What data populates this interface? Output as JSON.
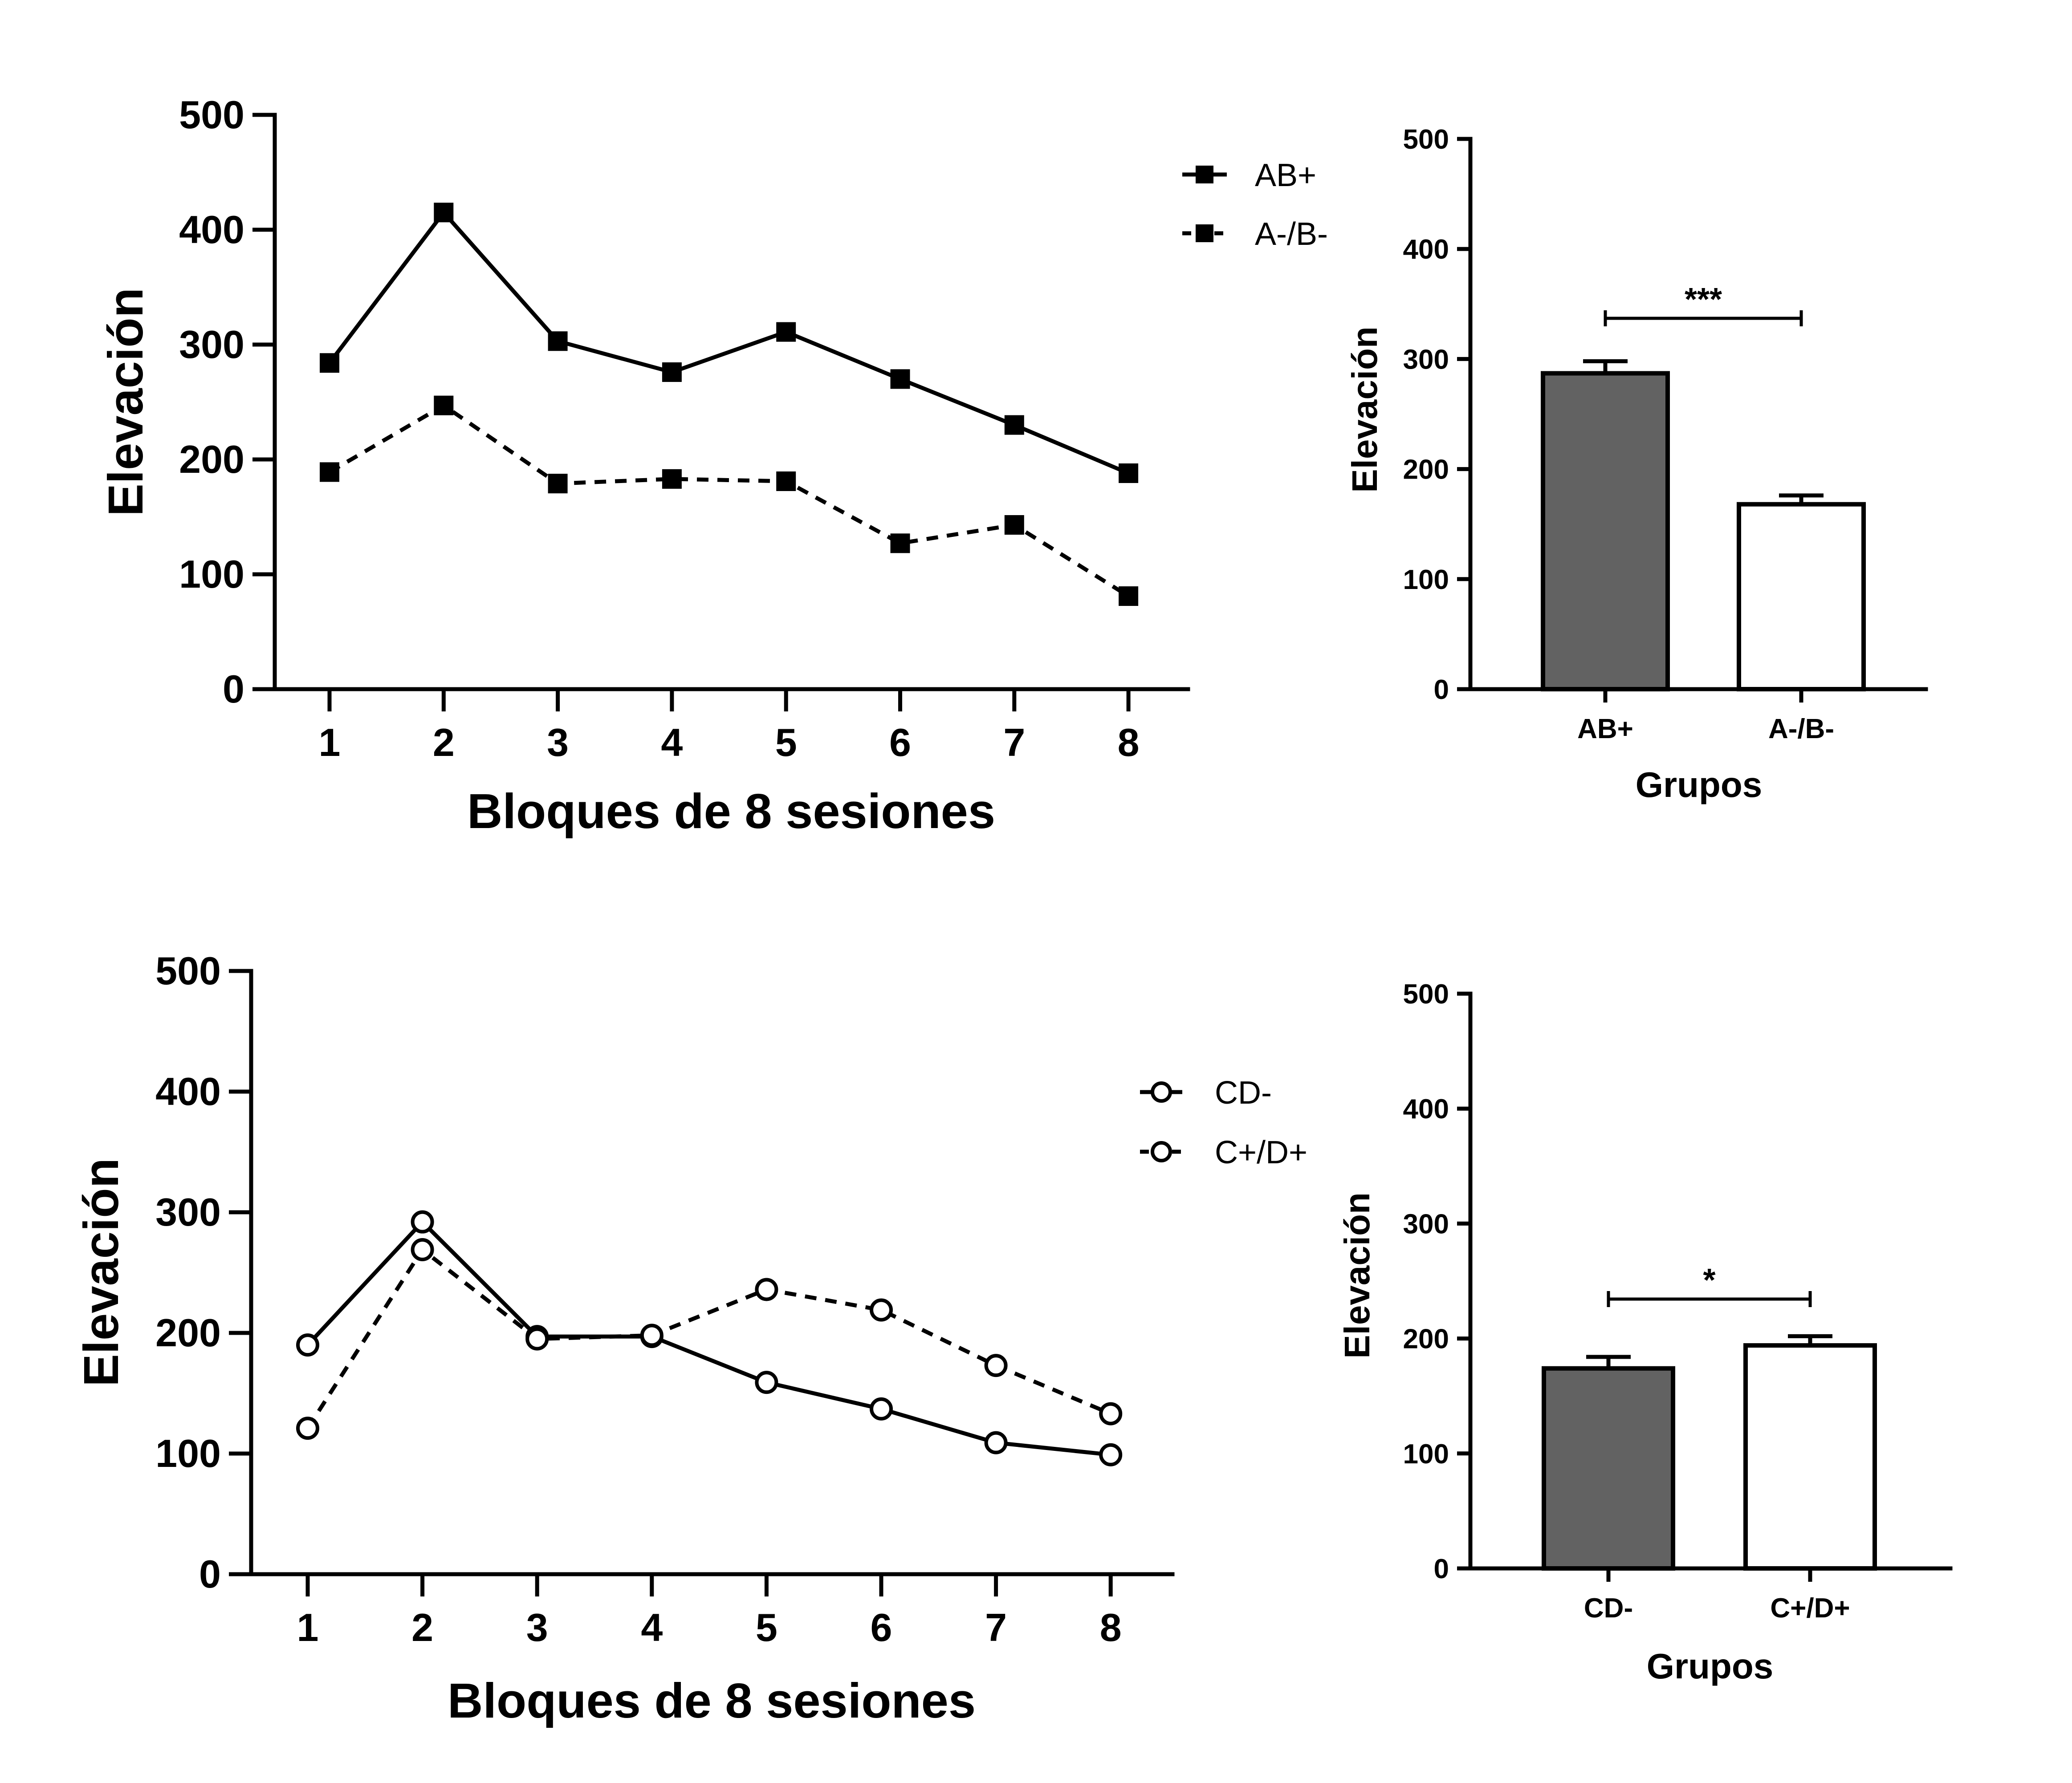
{
  "chart_data": [
    {
      "id": "line-top",
      "type": "line",
      "xlabel": "Bloques de 8 sesiones",
      "ylabel": "Elevación",
      "ylim": [
        0,
        500
      ],
      "yticks": [
        0,
        100,
        200,
        300,
        400,
        500
      ],
      "x": [
        1,
        2,
        3,
        4,
        5,
        6,
        7,
        8
      ],
      "marker": "filled-square",
      "legend_position": "top-right",
      "series": [
        {
          "name": "AB+",
          "style": "solid",
          "values": [
            284,
            415,
            303,
            276,
            311,
            270,
            230,
            188
          ]
        },
        {
          "name": "A-/B-",
          "style": "dashed",
          "values": [
            189,
            247,
            179,
            183,
            181,
            127,
            143,
            81
          ]
        }
      ]
    },
    {
      "id": "bar-top",
      "type": "bar",
      "xlabel": "Grupos",
      "ylabel": "Elevación",
      "ylim": [
        0,
        500
      ],
      "yticks": [
        0,
        100,
        200,
        300,
        400,
        500
      ],
      "categories": [
        "AB+",
        "A-/B-"
      ],
      "values": [
        287,
        168
      ],
      "errors": [
        11,
        8
      ],
      "fill_colors": [
        "#626262",
        "#ffffff"
      ],
      "significance": "***"
    },
    {
      "id": "line-bottom",
      "type": "line",
      "xlabel": "Bloques de 8 sesiones",
      "ylabel": "Elevación",
      "ylim": [
        0,
        500
      ],
      "yticks": [
        0,
        100,
        200,
        300,
        400,
        500
      ],
      "x": [
        1,
        2,
        3,
        4,
        5,
        6,
        7,
        8
      ],
      "marker": "open-circle",
      "legend_position": "right",
      "series": [
        {
          "name": "CD-",
          "style": "solid",
          "values": [
            190,
            292,
            197,
            197,
            159,
            137,
            109,
            99
          ]
        },
        {
          "name": "C+/D+",
          "style": "dashed",
          "values": [
            121,
            269,
            195,
            198,
            236,
            219,
            173,
            133
          ]
        }
      ]
    },
    {
      "id": "bar-bottom",
      "type": "bar",
      "xlabel": "Grupos",
      "ylabel": "Elevación",
      "ylim": [
        0,
        500
      ],
      "yticks": [
        0,
        100,
        200,
        300,
        400,
        500
      ],
      "categories": [
        "CD-",
        "C+/D+"
      ],
      "values": [
        174,
        194
      ],
      "errors": [
        10,
        8
      ],
      "fill_colors": [
        "#626262",
        "#ffffff"
      ],
      "significance": "*"
    }
  ]
}
